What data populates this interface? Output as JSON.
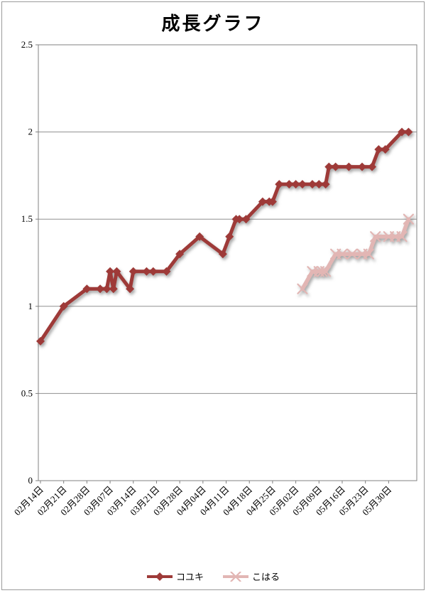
{
  "page_title": "成長グラフ",
  "colors": {
    "koyuki_series": "#9E3A38",
    "koharu_series": "#E2B6B4",
    "gridline": "#909090",
    "plot_border": "#808080",
    "axis_text": "#000000",
    "chart_border": "#9b9b9b"
  },
  "chart_data": {
    "type": "line",
    "title": "成長グラフ",
    "legend_position": "bottom",
    "grid": "horizontal",
    "x_axis": {
      "tick_labels": [
        "02月14日",
        "02月21日",
        "02月28日",
        "03月07日",
        "03月14日",
        "03月21日",
        "03月28日",
        "04月04日",
        "04月11日",
        "04月18日",
        "04月25日",
        "05月02日",
        "05月09日",
        "05月16日",
        "05月23日",
        "05月30日"
      ],
      "tick_interval_days": 7,
      "label_rotation_deg": 45
    },
    "y_axis": {
      "min": 0,
      "max": 2.5,
      "step": 0.5,
      "tick_labels": [
        "0",
        "0.5",
        "1",
        "1.5",
        "2",
        "2.5"
      ]
    },
    "series": [
      {
        "name": "コユキ",
        "color": "#9E3A38",
        "marker": "diamond",
        "line_width": 5,
        "points": [
          [
            "02/14",
            0.8
          ],
          [
            "02/21",
            1.0
          ],
          [
            "02/28",
            1.1
          ],
          [
            "03/04",
            1.1
          ],
          [
            "03/06",
            1.1
          ],
          [
            "03/07",
            1.2
          ],
          [
            "03/08",
            1.1
          ],
          [
            "03/09",
            1.2
          ],
          [
            "03/13",
            1.1
          ],
          [
            "03/14",
            1.2
          ],
          [
            "03/18",
            1.2
          ],
          [
            "03/20",
            1.2
          ],
          [
            "03/24",
            1.2
          ],
          [
            "03/28",
            1.3
          ],
          [
            "04/03",
            1.4
          ],
          [
            "04/10",
            1.3
          ],
          [
            "04/12",
            1.4
          ],
          [
            "04/14",
            1.5
          ],
          [
            "04/15",
            1.5
          ],
          [
            "04/17",
            1.5
          ],
          [
            "04/22",
            1.6
          ],
          [
            "04/24",
            1.6
          ],
          [
            "04/25",
            1.6
          ],
          [
            "04/27",
            1.7
          ],
          [
            "04/30",
            1.7
          ],
          [
            "05/02",
            1.7
          ],
          [
            "05/04",
            1.7
          ],
          [
            "05/07",
            1.7
          ],
          [
            "05/09",
            1.7
          ],
          [
            "05/11",
            1.7
          ],
          [
            "05/12",
            1.8
          ],
          [
            "05/14",
            1.8
          ],
          [
            "05/18",
            1.8
          ],
          [
            "05/22",
            1.8
          ],
          [
            "05/25",
            1.8
          ],
          [
            "05/27",
            1.9
          ],
          [
            "05/29",
            1.9
          ],
          [
            "06/03",
            2.0
          ],
          [
            "06/05",
            2.0
          ]
        ]
      },
      {
        "name": "こはる",
        "color": "#E2B6B4",
        "marker": "x",
        "line_width": 5.5,
        "points": [
          [
            "05/04",
            1.1
          ],
          [
            "05/07",
            1.2
          ],
          [
            "05/09",
            1.2
          ],
          [
            "05/10",
            1.2
          ],
          [
            "05/11",
            1.2
          ],
          [
            "05/14",
            1.3
          ],
          [
            "05/16",
            1.3
          ],
          [
            "05/19",
            1.3
          ],
          [
            "05/22",
            1.3
          ],
          [
            "05/24",
            1.3
          ],
          [
            "05/26",
            1.4
          ],
          [
            "05/30",
            1.4
          ],
          [
            "06/01",
            1.4
          ],
          [
            "06/03",
            1.4
          ],
          [
            "06/05",
            1.5
          ]
        ]
      }
    ]
  }
}
